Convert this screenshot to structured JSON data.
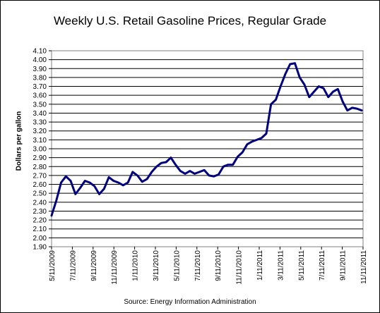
{
  "chart_data": {
    "type": "line",
    "title": "Weekly U.S. Retail Gasoline Prices, Regular Grade",
    "ylabel": "Dollars per gallon",
    "xlabel": "",
    "source": "Source:  Energy Information Administration",
    "ylim": [
      1.9,
      4.1
    ],
    "y_ticks": [
      "1.90",
      "2.00",
      "2.10",
      "2.20",
      "2.30",
      "2.40",
      "2.50",
      "2.60",
      "2.70",
      "2.80",
      "2.90",
      "3.00",
      "3.10",
      "3.20",
      "3.30",
      "3.40",
      "3.50",
      "3.60",
      "3.70",
      "3.80",
      "3.90",
      "4.00",
      "4.10"
    ],
    "x_ticks": [
      "5/11/2009",
      "7/11/2009",
      "9/11/2009",
      "11/11/2009",
      "1/11/2010",
      "3/11/2010",
      "5/11/2010",
      "7/11/2010",
      "9/11/2010",
      "11/11/2010",
      "1/11/2011",
      "3/11/2011",
      "5/11/2011",
      "7/11/2011",
      "9/11/2011",
      "11/11/2011"
    ],
    "grid": true,
    "legend": "none",
    "line_color": "#00007f",
    "x": [
      "2009-05-11",
      "2009-05-25",
      "2009-06-08",
      "2009-06-22",
      "2009-07-06",
      "2009-07-20",
      "2009-08-03",
      "2009-08-17",
      "2009-08-31",
      "2009-09-14",
      "2009-09-28",
      "2009-10-12",
      "2009-10-26",
      "2009-11-09",
      "2009-11-23",
      "2009-12-07",
      "2009-12-21",
      "2010-01-04",
      "2010-01-18",
      "2010-02-01",
      "2010-02-15",
      "2010-03-01",
      "2010-03-15",
      "2010-03-29",
      "2010-04-12",
      "2010-04-26",
      "2010-05-10",
      "2010-05-24",
      "2010-06-07",
      "2010-06-21",
      "2010-07-05",
      "2010-07-19",
      "2010-08-02",
      "2010-08-16",
      "2010-08-30",
      "2010-09-13",
      "2010-09-27",
      "2010-10-11",
      "2010-10-25",
      "2010-11-08",
      "2010-11-22",
      "2010-12-06",
      "2010-12-20",
      "2011-01-03",
      "2011-01-17",
      "2011-01-31",
      "2011-02-14",
      "2011-02-28",
      "2011-03-14",
      "2011-03-28",
      "2011-04-11",
      "2011-04-25",
      "2011-05-09",
      "2011-05-23",
      "2011-06-06",
      "2011-06-20",
      "2011-07-04",
      "2011-07-18",
      "2011-08-01",
      "2011-08-15",
      "2011-08-29",
      "2011-09-12",
      "2011-09-26",
      "2011-10-10",
      "2011-10-24",
      "2011-11-07"
    ],
    "values": [
      2.25,
      2.42,
      2.62,
      2.69,
      2.64,
      2.49,
      2.56,
      2.64,
      2.62,
      2.58,
      2.49,
      2.55,
      2.68,
      2.64,
      2.62,
      2.59,
      2.62,
      2.74,
      2.7,
      2.63,
      2.66,
      2.74,
      2.8,
      2.84,
      2.85,
      2.9,
      2.82,
      2.75,
      2.72,
      2.75,
      2.72,
      2.74,
      2.76,
      2.7,
      2.69,
      2.71,
      2.8,
      2.82,
      2.82,
      2.91,
      2.96,
      3.05,
      3.08,
      3.1,
      3.12,
      3.17,
      3.5,
      3.55,
      3.7,
      3.84,
      3.95,
      3.96,
      3.8,
      3.72,
      3.58,
      3.64,
      3.7,
      3.68,
      3.58,
      3.64,
      3.67,
      3.53,
      3.43,
      3.46,
      3.45,
      3.43
    ]
  }
}
